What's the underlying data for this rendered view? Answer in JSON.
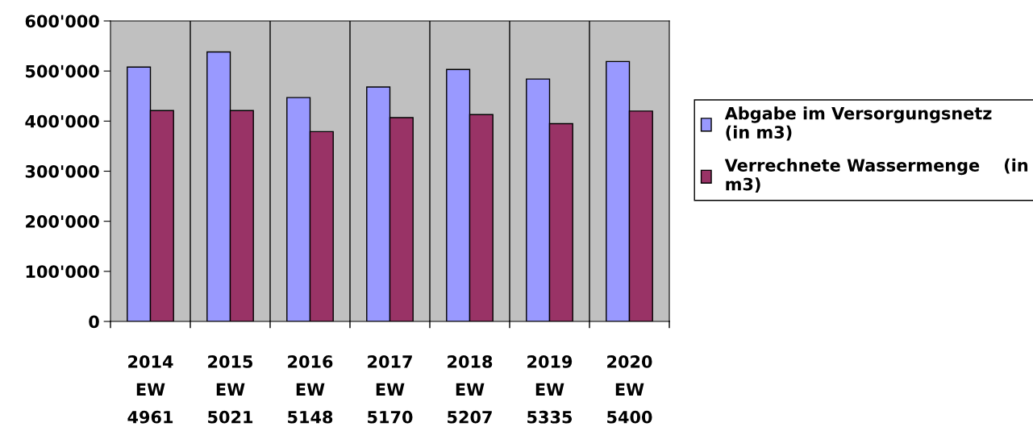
{
  "chart_data": {
    "type": "bar",
    "categories": [
      "2014\nEW\n4961",
      "2015\nEW\n5021",
      "2016\nEW\n5148",
      "2017\nEW\n5170",
      "2018\nEW\n5207",
      "2019\nEW\n5335",
      "2020\nEW\n5400"
    ],
    "series": [
      {
        "name": "Abgabe im Versorgungsnetz\n(in m3)",
        "color": "#9999ff",
        "values": [
          508000,
          538000,
          447000,
          468000,
          503000,
          484000,
          519000
        ]
      },
      {
        "name": "Verrechnete Wassermenge    (in\nm3)",
        "color": "#993366",
        "values": [
          421000,
          421000,
          379000,
          407000,
          413000,
          395000,
          420000
        ]
      }
    ],
    "ylim": [
      0,
      600000
    ],
    "yticks": [
      0,
      {
        "value": 100000,
        "label": "100'000"
      },
      {
        "value": 200000,
        "label": "200'000"
      },
      {
        "value": 300000,
        "label": "300'000"
      },
      {
        "value": 400000,
        "label": "400'000"
      },
      {
        "value": 500000,
        "label": "500'000"
      },
      {
        "value": 600000,
        "label": "600'000"
      }
    ],
    "grid": "x",
    "legend": "right"
  }
}
